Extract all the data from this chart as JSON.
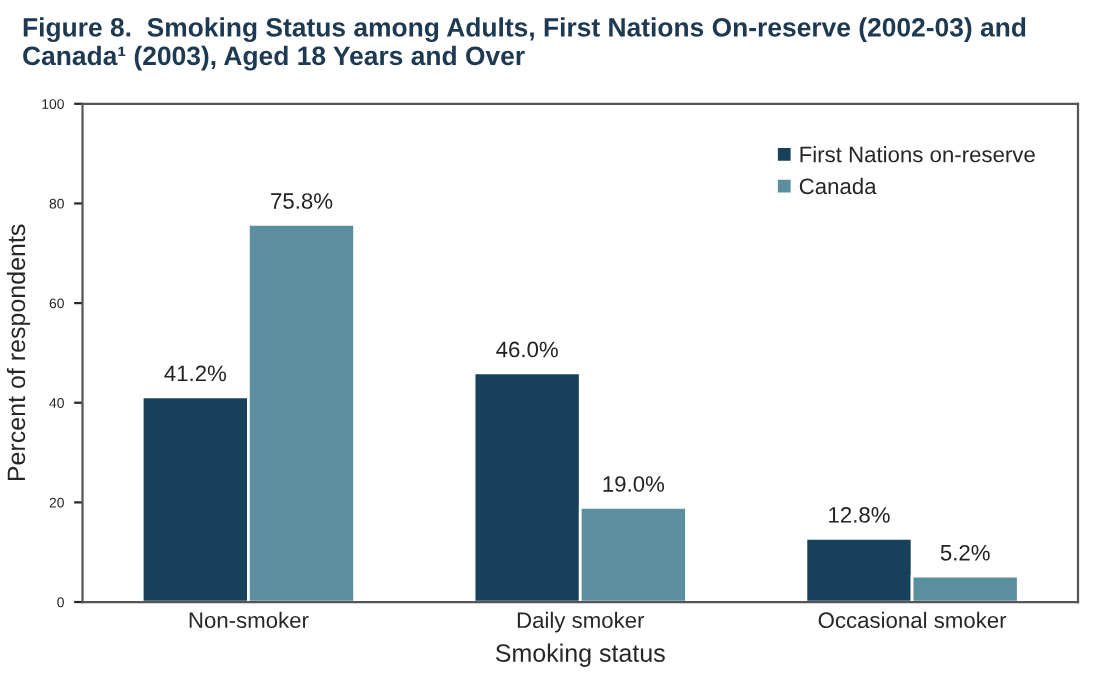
{
  "chart_data": {
    "type": "bar",
    "title": "Figure 8.  Smoking Status among Adults, First Nations On-reserve (2002-03) and Canada¹ (2003), Aged 18 Years and Over",
    "xlabel": "Smoking status",
    "ylabel": "Percent of respondents",
    "categories": [
      "Non-smoker",
      "Daily smoker",
      "Occasional smoker"
    ],
    "series": [
      {
        "name": "First Nations on-reserve",
        "color": "#17405a",
        "values": [
          41.2,
          46.0,
          12.8
        ],
        "value_labels": [
          "41.2%",
          "46.0%",
          "12.8%"
        ]
      },
      {
        "name": "Canada",
        "color": "#5b8fa0",
        "values": [
          75.8,
          19.0,
          5.2
        ],
        "value_labels": [
          "75.8%",
          "19.0%",
          "5.2%"
        ]
      }
    ],
    "ylim": [
      0,
      100
    ],
    "yticks": [
      0,
      20,
      40,
      60,
      80,
      100
    ],
    "grid": false,
    "legend": "top right"
  }
}
